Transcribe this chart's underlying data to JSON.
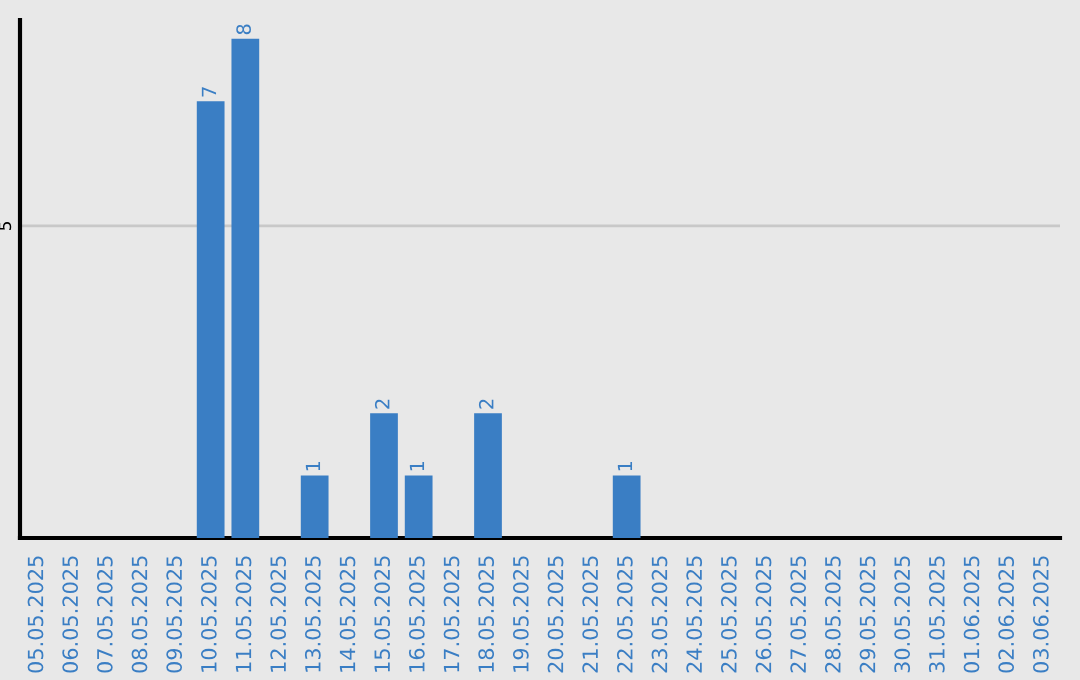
{
  "chart_data": {
    "type": "bar",
    "categories": [
      "05.05.2025",
      "06.05.2025",
      "07.05.2025",
      "08.05.2025",
      "09.05.2025",
      "10.05.2025",
      "11.05.2025",
      "12.05.2025",
      "13.05.2025",
      "14.05.2025",
      "15.05.2025",
      "16.05.2025",
      "17.05.2025",
      "18.05.2025",
      "19.05.2025",
      "20.05.2025",
      "21.05.2025",
      "22.05.2025",
      "23.05.2025",
      "24.05.2025",
      "25.05.2025",
      "26.05.2025",
      "27.05.2025",
      "28.05.2025",
      "29.05.2025",
      "30.05.2025",
      "31.05.2025",
      "01.06.2025",
      "02.06.2025",
      "03.06.2025"
    ],
    "values": [
      0,
      0,
      0,
      0,
      0,
      7,
      8,
      0,
      1,
      0,
      2,
      1,
      0,
      2,
      0,
      0,
      0,
      1,
      0,
      0,
      0,
      0,
      0,
      0,
      0,
      0,
      0,
      0,
      0,
      0
    ],
    "value_labels": [
      null,
      null,
      null,
      null,
      null,
      "7",
      "8",
      null,
      "1",
      null,
      "2",
      "1",
      null,
      "2",
      null,
      null,
      null,
      "1",
      null,
      null,
      null,
      null,
      null,
      null,
      null,
      null,
      null,
      null,
      null,
      null
    ],
    "color": "#3a7ec4",
    "ylim": [
      0,
      8.3
    ],
    "yticks": [
      5
    ],
    "grid": "y",
    "legend": false
  }
}
